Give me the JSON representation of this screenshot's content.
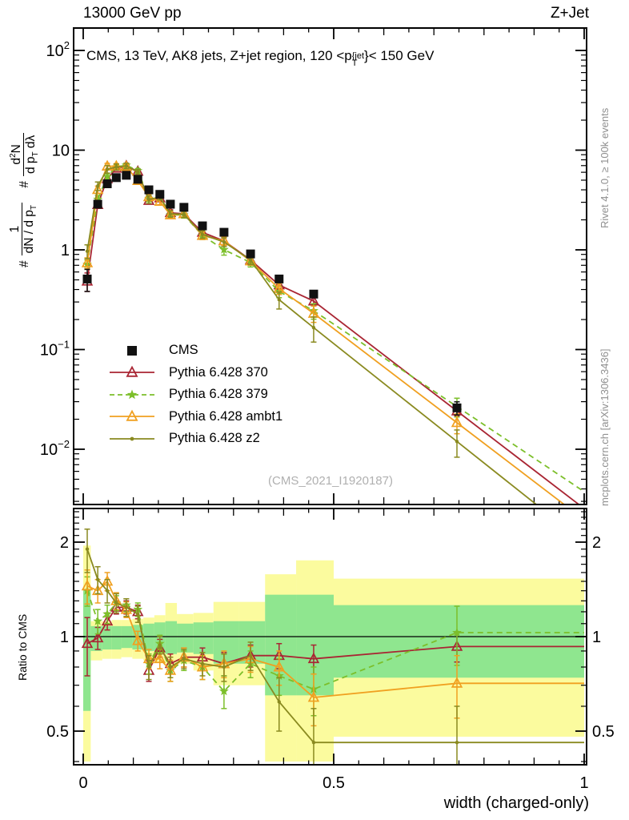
{
  "header": {
    "left": "13000 GeV pp",
    "right": "Z+Jet"
  },
  "plot_title": {
    "pre": "CMS, 13 TeV, AK8 jets, Z+jet region, 120 <p",
    "sup": "{jet",
    "sub": "T",
    "post": "}< 150 GeV"
  },
  "ylabel_parts": {
    "h1": "#",
    "f1n": "1",
    "f1d": "dN / d p",
    "f1ds": "T",
    "h2": "#",
    "f2n1": "d",
    "f2ns": "2",
    "f2n2": "N",
    "f2d1": "d p",
    "f2ds": "T",
    "f2d2": " dλ"
  },
  "watermark": "(CMS_2021_I1920187)",
  "side_notes": {
    "rivet": "Rivet 4.1.0, ≥ 100k events",
    "mcplots": "mcplots.cern.ch [arXiv:1306.3436]"
  },
  "ratio_label": "Ratio to CMS",
  "x_axis_title": "width (charged-only)",
  "axis_ticks": {
    "x_labels": [
      {
        "v": 0,
        "label": "0"
      },
      {
        "v": 0.5,
        "label": "0.5"
      },
      {
        "v": 1,
        "label": "1"
      }
    ],
    "main_y_labels": [
      {
        "exp": 2,
        "label": "10",
        "sup": "2"
      },
      {
        "exp": 1,
        "label": "10",
        "sup": ""
      },
      {
        "exp": 0,
        "label": "1",
        "sup": ""
      },
      {
        "exp": -1,
        "label": "10",
        "sup": "−1"
      },
      {
        "exp": -2,
        "label": "10",
        "sup": "−2"
      }
    ],
    "ratio_y_labels": [
      {
        "v": 2,
        "label": "2"
      },
      {
        "v": 1,
        "label": "1"
      },
      {
        "v": 0.5,
        "label": "0.5"
      }
    ]
  },
  "legend": {
    "items": [
      {
        "label": "CMS",
        "type": "square",
        "color": "#111111",
        "dash": false
      },
      {
        "label": "Pythia 6.428 370",
        "type": "triangle",
        "color": "#a92533",
        "dash": false
      },
      {
        "label": "Pythia 6.428 379",
        "type": "star",
        "color": "#7cbf2a",
        "dash": true
      },
      {
        "label": "Pythia 6.428 ambt1",
        "type": "triangle",
        "color": "#f0a020",
        "dash": false
      },
      {
        "label": "Pythia 6.428 z2",
        "type": "dot",
        "color": "#8a8a20",
        "dash": false
      }
    ]
  },
  "chart_data": {
    "type": "line",
    "title": "CMS, 13 TeV, AK8 jets, Z+jet region, 120 < pT{jet} < 150 GeV",
    "xlabel": "width (charged-only)",
    "ylabel": "# 1/(dN/dpT) # d2N/(dpT dlambda)",
    "ratio_ylabel": "Ratio to CMS",
    "x_range": [
      0,
      1
    ],
    "main_y_range": [
      0.0028,
      168
    ],
    "ratio_y_range": [
      0.39,
      2.56
    ],
    "log_y": true,
    "grid": false,
    "legend_position": "upper-left-inside",
    "x": [
      0.008,
      0.029,
      0.048,
      0.066,
      0.086,
      0.109,
      0.131,
      0.153,
      0.174,
      0.201,
      0.238,
      0.281,
      0.334,
      0.391,
      0.46,
      0.746
    ],
    "cms": {
      "name": "CMS",
      "color": "#111111",
      "y": [
        0.51,
        2.87,
        4.6,
        5.3,
        5.6,
        5.1,
        4.0,
        3.6,
        2.87,
        2.67,
        1.74,
        1.5,
        0.91,
        0.51,
        0.36,
        0.026
      ],
      "err_rel": [
        0.25,
        0.05,
        0.04,
        0.03,
        0.03,
        0.03,
        0.03,
        0.03,
        0.03,
        0.03,
        0.04,
        0.04,
        0.05,
        0.06,
        0.08,
        0.15
      ]
    },
    "series": [
      {
        "name": "Pythia 6.428 370",
        "color": "#a92533",
        "marker": "triangle",
        "dash": false,
        "ratio": [
          0.95,
          0.99,
          1.12,
          1.24,
          1.24,
          1.2,
          0.78,
          0.92,
          0.82,
          0.86,
          0.86,
          0.82,
          0.87,
          0.87,
          0.85,
          0.93
        ],
        "ratio_err": [
          0.2,
          0.08,
          0.07,
          0.06,
          0.06,
          0.06,
          0.06,
          0.06,
          0.06,
          0.06,
          0.06,
          0.07,
          0.07,
          0.08,
          0.09,
          0.1
        ]
      },
      {
        "name": "Pythia 6.428 379",
        "color": "#7cbf2a",
        "marker": "star",
        "dash": true,
        "ratio": [
          1.4,
          1.12,
          1.18,
          1.28,
          1.26,
          1.22,
          0.82,
          0.95,
          0.78,
          0.84,
          0.8,
          0.67,
          0.82,
          0.75,
          0.68,
          1.03
        ],
        "ratio_err": [
          0.15,
          0.1,
          0.08,
          0.07,
          0.06,
          0.06,
          0.06,
          0.06,
          0.06,
          0.06,
          0.07,
          0.08,
          0.08,
          0.1,
          0.12,
          0.22
        ]
      },
      {
        "name": "Pythia 6.428 ambt1",
        "color": "#f0a020",
        "marker": "triangle",
        "dash": false,
        "ratio": [
          1.45,
          1.4,
          1.5,
          1.3,
          1.22,
          0.97,
          0.85,
          0.85,
          0.78,
          0.86,
          0.8,
          0.82,
          0.85,
          0.8,
          0.64,
          0.71
        ],
        "ratio_err": [
          0.18,
          0.12,
          0.1,
          0.08,
          0.07,
          0.07,
          0.06,
          0.06,
          0.06,
          0.06,
          0.07,
          0.08,
          0.08,
          0.1,
          0.12,
          0.16
        ]
      },
      {
        "name": "Pythia 6.428 z2",
        "color": "#8a8a20",
        "marker": "dot",
        "dash": false,
        "ratio": [
          1.9,
          1.52,
          1.4,
          1.28,
          1.24,
          1.18,
          0.8,
          0.94,
          0.8,
          0.85,
          0.82,
          0.8,
          0.87,
          0.62,
          0.46,
          0.46
        ],
        "ratio_err": [
          0.3,
          0.15,
          0.12,
          0.09,
          0.08,
          0.07,
          0.07,
          0.06,
          0.06,
          0.06,
          0.07,
          0.08,
          0.09,
          0.12,
          0.13,
          0.14
        ]
      }
    ],
    "bands": {
      "yellow": "#fbfb9e",
      "green": "#8fe68f",
      "segments": [
        {
          "x0": 0.0,
          "x1": 0.015,
          "ylo": 0.4,
          "yhi": 1.95,
          "glo": 0.58,
          "ghi": 1.42
        },
        {
          "x0": 0.015,
          "x1": 0.038,
          "ylo": 0.84,
          "yhi": 1.12,
          "glo": 0.9,
          "ghi": 1.08
        },
        {
          "x0": 0.038,
          "x1": 0.057,
          "ylo": 0.85,
          "yhi": 1.12,
          "glo": 0.91,
          "ghi": 1.08
        },
        {
          "x0": 0.057,
          "x1": 0.076,
          "ylo": 0.85,
          "yhi": 1.13,
          "glo": 0.91,
          "ghi": 1.08
        },
        {
          "x0": 0.076,
          "x1": 0.098,
          "ylo": 0.86,
          "yhi": 1.13,
          "glo": 0.92,
          "ghi": 1.08
        },
        {
          "x0": 0.098,
          "x1": 0.12,
          "ylo": 0.85,
          "yhi": 1.14,
          "glo": 0.91,
          "ghi": 1.09
        },
        {
          "x0": 0.12,
          "x1": 0.142,
          "ylo": 0.84,
          "yhi": 1.15,
          "glo": 0.9,
          "ghi": 1.1
        },
        {
          "x0": 0.142,
          "x1": 0.164,
          "ylo": 0.83,
          "yhi": 1.17,
          "glo": 0.89,
          "ghi": 1.11
        },
        {
          "x0": 0.164,
          "x1": 0.187,
          "ylo": 0.8,
          "yhi": 1.28,
          "glo": 0.88,
          "ghi": 1.12
        },
        {
          "x0": 0.187,
          "x1": 0.22,
          "ylo": 0.82,
          "yhi": 1.18,
          "glo": 0.89,
          "ghi": 1.1
        },
        {
          "x0": 0.22,
          "x1": 0.26,
          "ylo": 0.78,
          "yhi": 1.19,
          "glo": 0.88,
          "ghi": 1.11
        },
        {
          "x0": 0.26,
          "x1": 0.31,
          "ylo": 0.7,
          "yhi": 1.29,
          "glo": 0.82,
          "ghi": 1.12
        },
        {
          "x0": 0.31,
          "x1": 0.363,
          "ylo": 0.7,
          "yhi": 1.29,
          "glo": 0.82,
          "ghi": 1.12
        },
        {
          "x0": 0.363,
          "x1": 0.425,
          "ylo": 0.4,
          "yhi": 1.58,
          "glo": 0.65,
          "ghi": 1.36
        },
        {
          "x0": 0.425,
          "x1": 0.5,
          "ylo": 0.4,
          "yhi": 1.75,
          "glo": 0.65,
          "ghi": 1.36
        },
        {
          "x0": 0.5,
          "x1": 1.0,
          "ylo": 0.48,
          "yhi": 1.53,
          "glo": 0.74,
          "ghi": 1.26
        }
      ]
    }
  }
}
